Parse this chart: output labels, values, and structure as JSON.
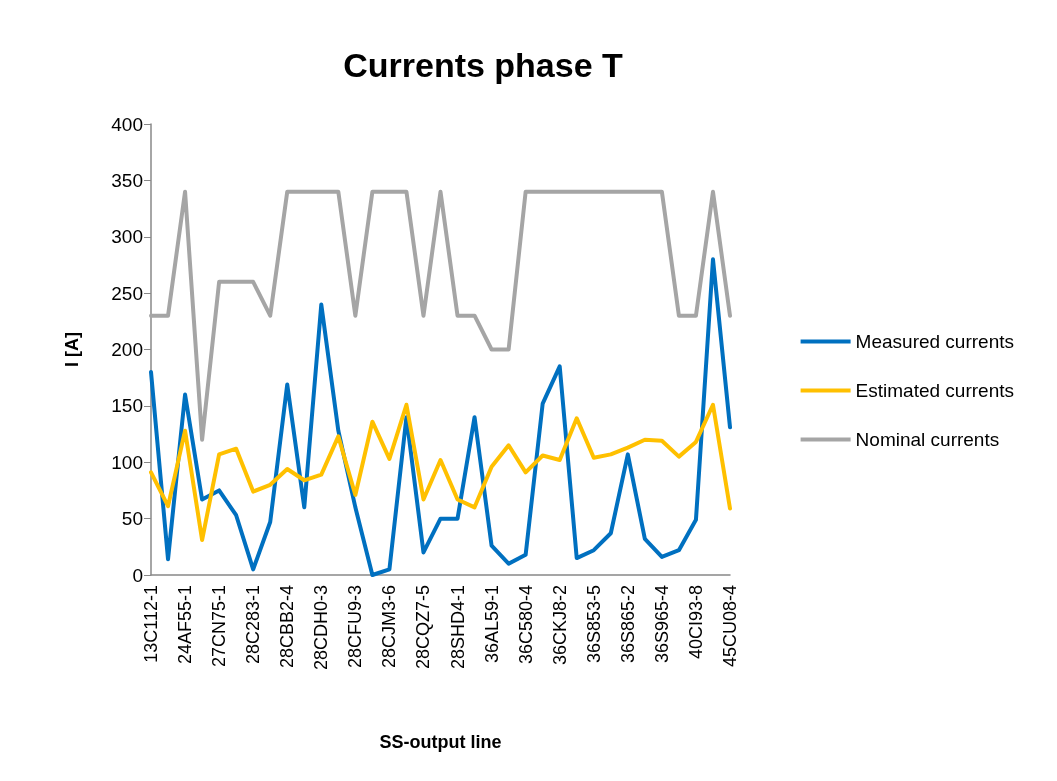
{
  "chart_data": {
    "type": "line",
    "title": "Currents phase T",
    "xlabel": "SS-output line",
    "ylabel": "I [A]",
    "categories": [
      "13C112-1",
      null,
      "24AF55-1",
      null,
      "27CN75-1",
      null,
      "28C283-1",
      null,
      "28CBB2-4",
      null,
      "28CDH0-3",
      null,
      "28CFU9-3",
      null,
      "28CJM3-6",
      null,
      "28CQZ7-5",
      null,
      "28SHD4-1",
      null,
      "36AL59-1",
      null,
      "36C580-4",
      null,
      "36CKJ8-2",
      null,
      "36S853-5",
      null,
      "36S865-2",
      null,
      "36S965-4",
      null,
      "40CI93-8",
      null,
      "45CU08-4"
    ],
    "series": [
      {
        "name": "Measured currents",
        "color": "#0070c0",
        "values": [
          180,
          14,
          160,
          67,
          75,
          53,
          5,
          47,
          169,
          60,
          240,
          128,
          60,
          0,
          5,
          140,
          20,
          50,
          50,
          140,
          26,
          10,
          18,
          152,
          185,
          15,
          22,
          37,
          107,
          32,
          16,
          22,
          49,
          280,
          131
        ]
      },
      {
        "name": "Estimated currents",
        "color": "#ffc000",
        "values": [
          91,
          61,
          128,
          31,
          107,
          112,
          74,
          80,
          94,
          84,
          89,
          123,
          71,
          136,
          103,
          151,
          67,
          102,
          67,
          60,
          96,
          115,
          91,
          106,
          102,
          139,
          104,
          107,
          113,
          120,
          119,
          105,
          118,
          151,
          59
        ]
      },
      {
        "name": "Nominal currents",
        "color": "#a5a5a5",
        "values": [
          230,
          230,
          340,
          120,
          260,
          260,
          260,
          230,
          340,
          340,
          340,
          340,
          230,
          340,
          340,
          340,
          230,
          340,
          230,
          230,
          200,
          200,
          340,
          340,
          340,
          340,
          340,
          340,
          340,
          340,
          340,
          230,
          230,
          340,
          230
        ]
      }
    ],
    "ylim": [
      0,
      400
    ],
    "yticks": [
      0,
      50,
      100,
      150,
      200,
      250,
      300,
      350,
      400
    ],
    "legend": "right",
    "marker": "none",
    "line_style": "solid"
  }
}
